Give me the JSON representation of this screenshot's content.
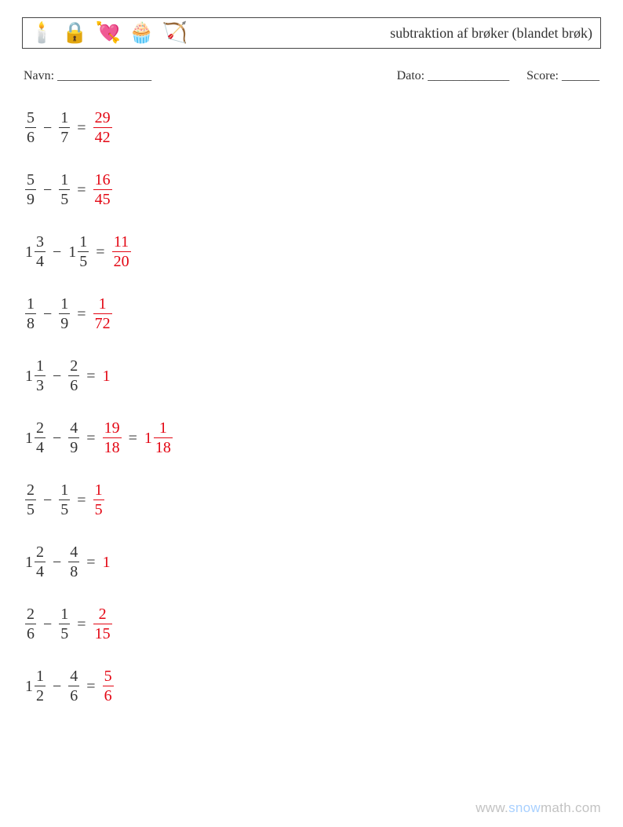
{
  "colors": {
    "text": "#333333",
    "answer": "#e30613",
    "border": "#444444",
    "background": "#ffffff",
    "watermark_gray": "rgba(120,120,120,0.45)",
    "watermark_blue": "rgba(96,170,255,0.55)"
  },
  "typography": {
    "body_font": "Times New Roman",
    "base_size_pt": 15,
    "fraction_size_pt": 15,
    "title_size_pt": 14
  },
  "header": {
    "icons": [
      "🕯️",
      "🔒",
      "💘",
      "🧁",
      "🏹"
    ],
    "title": "subtraktion af brøker (blandet brøk)"
  },
  "meta": {
    "name_label": "Navn: _______________",
    "date_label": "Dato: _____________",
    "score_label": "Score: ______"
  },
  "problems": [
    {
      "left": {
        "whole": null,
        "num": "5",
        "den": "6"
      },
      "right": {
        "whole": null,
        "num": "1",
        "den": "7"
      },
      "answers": [
        {
          "whole": null,
          "num": "29",
          "den": "42"
        }
      ]
    },
    {
      "left": {
        "whole": null,
        "num": "5",
        "den": "9"
      },
      "right": {
        "whole": null,
        "num": "1",
        "den": "5"
      },
      "answers": [
        {
          "whole": null,
          "num": "16",
          "den": "45"
        }
      ]
    },
    {
      "left": {
        "whole": "1",
        "num": "3",
        "den": "4"
      },
      "right": {
        "whole": "1",
        "num": "1",
        "den": "5"
      },
      "answers": [
        {
          "whole": null,
          "num": "11",
          "den": "20"
        }
      ]
    },
    {
      "left": {
        "whole": null,
        "num": "1",
        "den": "8"
      },
      "right": {
        "whole": null,
        "num": "1",
        "den": "9"
      },
      "answers": [
        {
          "whole": null,
          "num": "1",
          "den": "72"
        }
      ]
    },
    {
      "left": {
        "whole": "1",
        "num": "1",
        "den": "3"
      },
      "right": {
        "whole": null,
        "num": "2",
        "den": "6"
      },
      "answers": [
        {
          "plain": "1"
        }
      ]
    },
    {
      "left": {
        "whole": "1",
        "num": "2",
        "den": "4"
      },
      "right": {
        "whole": null,
        "num": "4",
        "den": "9"
      },
      "answers": [
        {
          "whole": null,
          "num": "19",
          "den": "18"
        },
        {
          "whole": "1",
          "num": "1",
          "den": "18"
        }
      ]
    },
    {
      "left": {
        "whole": null,
        "num": "2",
        "den": "5"
      },
      "right": {
        "whole": null,
        "num": "1",
        "den": "5"
      },
      "answers": [
        {
          "whole": null,
          "num": "1",
          "den": "5"
        }
      ]
    },
    {
      "left": {
        "whole": "1",
        "num": "2",
        "den": "4"
      },
      "right": {
        "whole": null,
        "num": "4",
        "den": "8"
      },
      "answers": [
        {
          "plain": "1"
        }
      ]
    },
    {
      "left": {
        "whole": null,
        "num": "2",
        "den": "6"
      },
      "right": {
        "whole": null,
        "num": "1",
        "den": "5"
      },
      "answers": [
        {
          "whole": null,
          "num": "2",
          "den": "15"
        }
      ]
    },
    {
      "left": {
        "whole": "1",
        "num": "1",
        "den": "2"
      },
      "right": {
        "whole": null,
        "num": "4",
        "den": "6"
      },
      "answers": [
        {
          "whole": null,
          "num": "5",
          "den": "6"
        }
      ]
    }
  ],
  "operators": {
    "minus": "−",
    "equals": "="
  },
  "watermark": {
    "prefix": "www.",
    "mid": "snow",
    "suffix": "math.com"
  }
}
